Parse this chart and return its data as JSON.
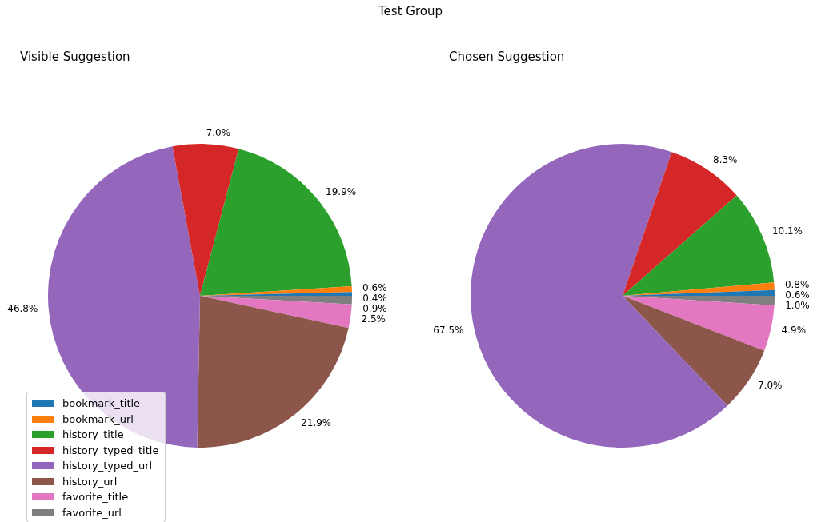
{
  "chart_data": [
    {
      "type": "pie",
      "title": "Visible Suggestion",
      "annotations": [
        "Test Group"
      ],
      "categories": [
        "bookmark_title",
        "bookmark_url",
        "history_title",
        "history_typed_title",
        "history_typed_url",
        "history_url",
        "favorite_title",
        "favorite_url"
      ],
      "values": [
        0.4,
        0.6,
        19.9,
        7.0,
        46.8,
        21.9,
        2.5,
        0.9
      ],
      "value_labels": [
        "0.4%",
        "0.6%",
        "19.9%",
        "7.0%",
        "46.8%",
        "21.9%",
        "2.5%",
        "0.9%"
      ],
      "colors": [
        "#1f77b4",
        "#ff7f0e",
        "#2ca02c",
        "#d62728",
        "#9467bd",
        "#8c564b",
        "#e377c2",
        "#7f7f7f"
      ],
      "legend": "bottom left"
    },
    {
      "type": "pie",
      "title": "Chosen Suggestion",
      "categories": [
        null,
        null,
        null,
        null,
        null,
        null,
        null,
        null
      ],
      "values": [
        0.6,
        0.8,
        10.1,
        8.3,
        67.5,
        7.0,
        4.9,
        1.0
      ],
      "value_labels": [
        "0.6%",
        "0.8%",
        "10.1%",
        "8.3%",
        "67.5%",
        "7.0%",
        "4.9%",
        "1.0%"
      ],
      "colors": [
        "#1f77b4",
        "#ff7f0e",
        "#2ca02c",
        "#d62728",
        "#9467bd",
        "#8c564b",
        "#e377c2",
        "#7f7f7f"
      ],
      "legend": false
    }
  ]
}
